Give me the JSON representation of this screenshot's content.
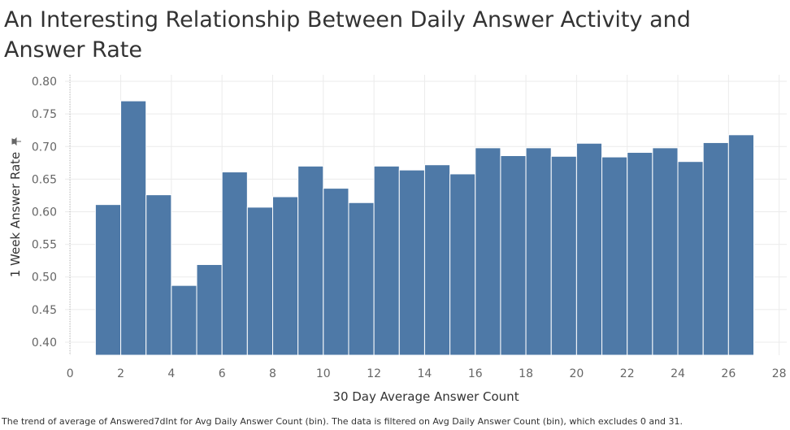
{
  "title": "An Interesting Relationship Between Daily Answer Activity and Answer Rate",
  "caption": "The trend of average of Answered7dInt for Avg Daily Answer Count (bin). The data is filtered on Avg Daily Answer Count (bin), which excludes 0 and 31.",
  "pin_icon": "pin-icon",
  "colors": {
    "bar": "#4e79a7",
    "grid": "#ebebeb",
    "text": "#666666"
  },
  "chart_data": {
    "type": "bar",
    "xlabel": "30 Day Average Answer Count",
    "ylabel": "1 Week Answer Rate",
    "xlim": [
      -0.2,
      28.3
    ],
    "ylim": [
      0.38,
      0.81
    ],
    "xticks": [
      0,
      2,
      4,
      6,
      8,
      10,
      12,
      14,
      16,
      18,
      20,
      22,
      24,
      26,
      28
    ],
    "yticks": [
      0.4,
      0.45,
      0.5,
      0.55,
      0.6,
      0.65,
      0.7,
      0.75,
      0.8
    ],
    "bin_width": 1,
    "bins": [
      1,
      2,
      3,
      4,
      5,
      6,
      7,
      8,
      9,
      10,
      11,
      12,
      13,
      14,
      15,
      16,
      17,
      18,
      19,
      20,
      21,
      22,
      23,
      24,
      25,
      26
    ],
    "values": [
      0.611,
      0.77,
      0.626,
      0.487,
      0.519,
      0.661,
      0.607,
      0.623,
      0.67,
      0.636,
      0.614,
      0.67,
      0.664,
      0.672,
      0.658,
      0.698,
      0.686,
      0.698,
      0.685,
      0.705,
      0.684,
      0.691,
      0.698,
      0.677,
      0.706,
      0.718
    ],
    "grid": true
  }
}
